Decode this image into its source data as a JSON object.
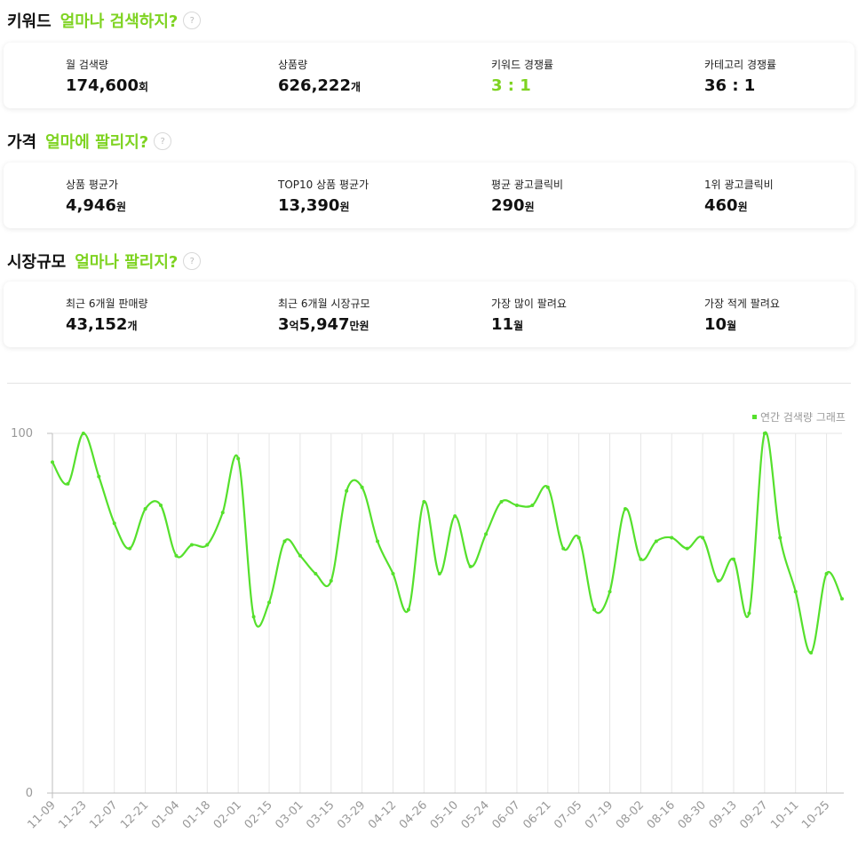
{
  "sections": [
    {
      "title": "키워드",
      "subtitle": "얼마나 검색하지?",
      "help": "?",
      "stats": [
        {
          "label": "월 검색량",
          "value": "174,600",
          "unit": "회"
        },
        {
          "label": "상품량",
          "value": "626,222",
          "unit": "개"
        },
        {
          "label": "키워드 경쟁률",
          "value": "3 : 1",
          "unit": ""
        },
        {
          "label": "카테고리 경쟁률",
          "value": "36 : 1",
          "unit": ""
        }
      ]
    },
    {
      "title": "가격",
      "subtitle": "얼마에 팔리지?",
      "help": "?",
      "stats": [
        {
          "label": "상품 평균가",
          "value": "4,946",
          "unit": "원"
        },
        {
          "label": "TOP10 상품 평균가",
          "value": "13,390",
          "unit": "원"
        },
        {
          "label": "평균 광고클릭비",
          "value": "290",
          "unit": "원"
        },
        {
          "label": "1위 광고클릭비",
          "value": "460",
          "unit": "원"
        }
      ]
    },
    {
      "title": "시장규모",
      "subtitle": "얼마나 팔리지?",
      "help": "?",
      "stats": [
        {
          "label": "최근 6개월 판매량",
          "value": "43,152",
          "unit": "개"
        },
        {
          "label": "최근 6개월 시장규모",
          "value": "3",
          "unit": "억",
          "value2": "5,947",
          "unit2": "만원"
        },
        {
          "label": "가장 많이 팔려요",
          "value": "11",
          "unit": "월"
        },
        {
          "label": "가장 적게 팔려요",
          "value": "10",
          "unit": "월"
        }
      ]
    }
  ],
  "colors": {
    "accent": "#7ed321",
    "line": "#55e02c",
    "grid": "#e6e6e6"
  },
  "chart_data": {
    "type": "line",
    "legend": "연간 검색량 그래프",
    "legend_position": "top-right",
    "ylim": [
      0,
      100
    ],
    "yticks": [
      0,
      100
    ],
    "grid": true,
    "xticks": [
      "11-09",
      "11-23",
      "12-07",
      "12-21",
      "01-04",
      "01-18",
      "02-01",
      "02-15",
      "03-01",
      "03-15",
      "03-29",
      "04-12",
      "04-26",
      "05-10",
      "05-24",
      "06-07",
      "06-21",
      "07-05",
      "07-19",
      "08-02",
      "08-16",
      "08-30",
      "09-13",
      "09-27",
      "10-11",
      "10-25"
    ],
    "x": [
      "11-09",
      "11-16",
      "11-23",
      "11-30",
      "12-07",
      "12-14",
      "12-21",
      "12-28",
      "01-04",
      "01-11",
      "01-18",
      "01-25",
      "02-01",
      "02-08",
      "02-15",
      "02-22",
      "03-01",
      "03-08",
      "03-15",
      "03-22",
      "03-29",
      "04-05",
      "04-12",
      "04-19",
      "04-26",
      "05-03",
      "05-10",
      "05-17",
      "05-24",
      "05-31",
      "06-07",
      "06-14",
      "06-21",
      "06-28",
      "07-05",
      "07-12",
      "07-19",
      "07-26",
      "08-02",
      "08-09",
      "08-16",
      "08-23",
      "08-30",
      "09-06",
      "09-13",
      "09-20",
      "09-27",
      "10-04",
      "10-11",
      "10-18",
      "10-25",
      "11-01"
    ],
    "series": [
      {
        "name": "연간 검색량 그래프",
        "values": [
          92,
          86,
          100,
          88,
          75,
          68,
          79,
          80,
          66,
          69,
          69,
          78,
          93,
          49,
          53,
          70,
          66,
          61,
          59,
          84,
          85,
          70,
          61,
          51,
          81,
          61,
          77,
          63,
          72,
          81,
          80,
          80,
          85,
          68,
          71,
          51,
          56,
          79,
          65,
          70,
          71,
          68,
          71,
          59,
          65,
          50,
          100,
          71,
          56,
          39,
          61,
          54
        ]
      }
    ]
  }
}
